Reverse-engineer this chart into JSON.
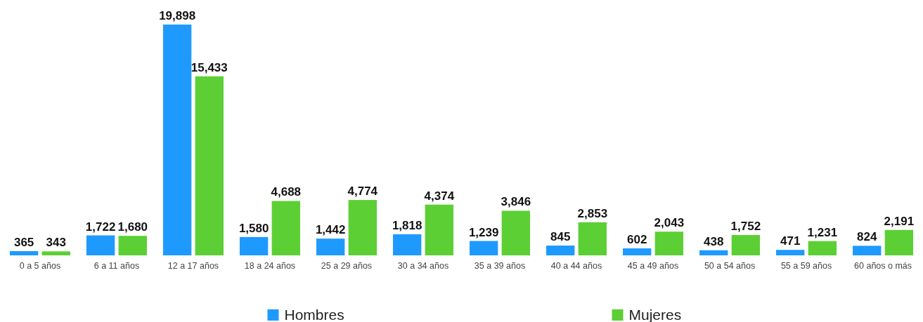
{
  "chart_data": {
    "type": "bar",
    "categories": [
      "0 a 5 años",
      "6 a 11 años",
      "12 a 17 años",
      "18 a 24 años",
      "25 a 29 años",
      "30 a 34 años",
      "35 a 39 años",
      "40 a 44 años",
      "45 a 49 años",
      "50 a 54 años",
      "55 a 59 años",
      "60 años o más"
    ],
    "series": [
      {
        "name": "Hombres",
        "color": "#1e9afe",
        "values": [
          365,
          1722,
          19898,
          1580,
          1442,
          1818,
          1239,
          845,
          602,
          438,
          471,
          824
        ],
        "value_labels": [
          "365",
          "1,722",
          "19,898",
          "1,580",
          "1,442",
          "1,818",
          "1,239",
          "845",
          "602",
          "438",
          "471",
          "824"
        ]
      },
      {
        "name": "Mujeres",
        "color": "#5ccf35",
        "values": [
          343,
          1680,
          15433,
          4688,
          4774,
          4374,
          3846,
          2853,
          2043,
          1752,
          1231,
          2191
        ],
        "value_labels": [
          "343",
          "1,680",
          "15,433",
          "4,688",
          "4,774",
          "4,374",
          "3,846",
          "2,853",
          "2,043",
          "1,752",
          "1,231",
          "2,191"
        ]
      }
    ],
    "legend": "bottom"
  }
}
